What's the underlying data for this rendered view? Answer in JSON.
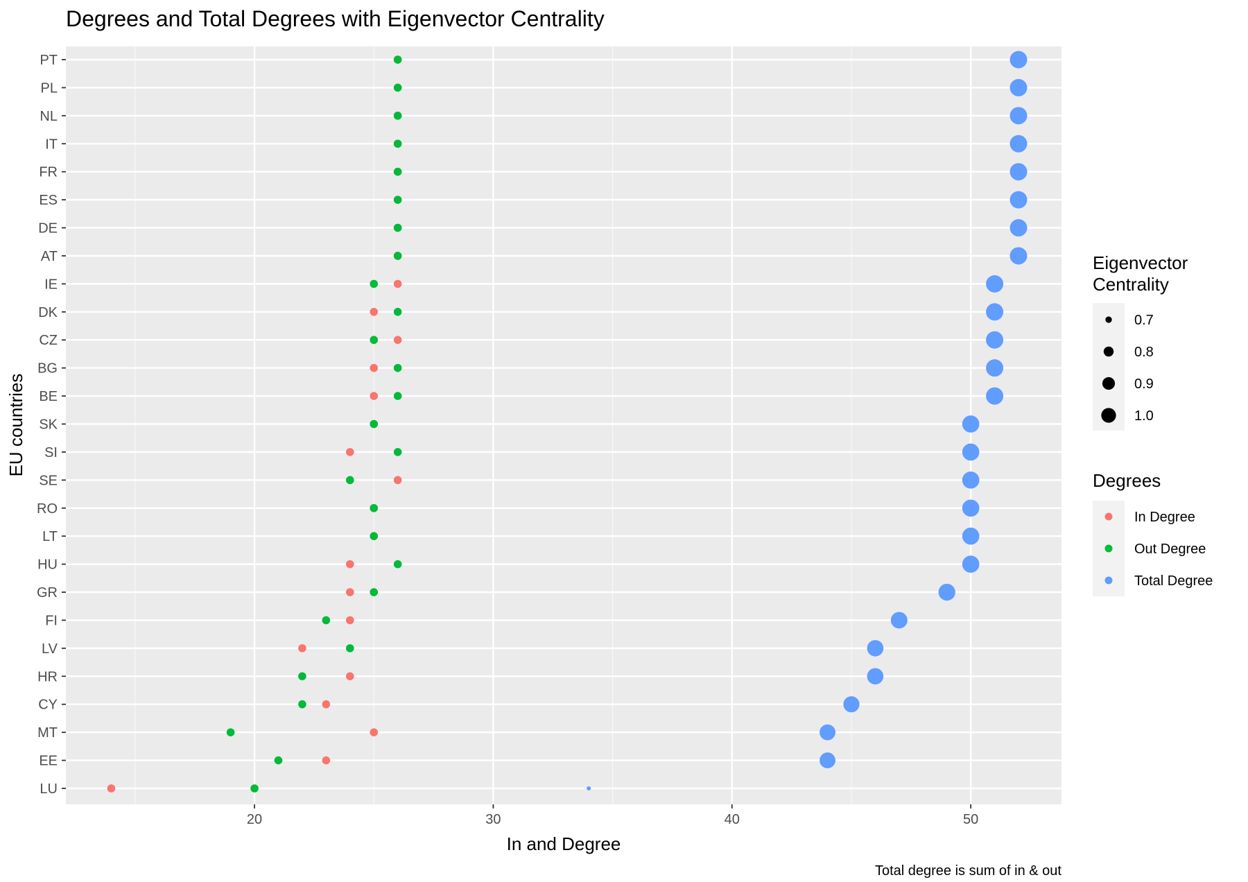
{
  "chart_data": {
    "type": "scatter",
    "title": "Degrees and Total Degrees with Eigenvector Centrality",
    "xlabel": "In and Degree",
    "ylabel": "EU countries",
    "caption": "Total degree is sum of in & out",
    "xlim": [
      12.1,
      53.8
    ],
    "x_ticks": [
      20,
      30,
      40,
      50
    ],
    "grid": true,
    "background": "#ebebeb",
    "categories": [
      "LU",
      "EE",
      "MT",
      "CY",
      "HR",
      "LV",
      "FI",
      "GR",
      "HU",
      "LT",
      "RO",
      "SE",
      "SI",
      "SK",
      "BE",
      "BG",
      "CZ",
      "DK",
      "IE",
      "AT",
      "DE",
      "ES",
      "FR",
      "IT",
      "NL",
      "PL",
      "PT"
    ],
    "series": [
      {
        "name": "In Degree",
        "color": "#F8766D",
        "values": [
          14,
          23,
          25,
          23,
          24,
          22,
          24,
          24,
          24,
          25,
          25,
          26,
          24,
          25,
          25,
          25,
          26,
          25,
          26,
          26,
          26,
          26,
          26,
          26,
          26,
          26,
          26
        ]
      },
      {
        "name": "Out Degree",
        "color": "#00BA38",
        "values": [
          20,
          21,
          19,
          22,
          22,
          24,
          23,
          25,
          26,
          25,
          25,
          24,
          26,
          25,
          26,
          26,
          25,
          26,
          25,
          26,
          26,
          26,
          26,
          26,
          26,
          26,
          26
        ]
      },
      {
        "name": "Total Degree",
        "color": "#619CFF",
        "values": [
          34,
          44,
          44,
          45,
          46,
          46,
          47,
          49,
          50,
          50,
          50,
          50,
          50,
          50,
          51,
          51,
          51,
          51,
          51,
          52,
          52,
          52,
          52,
          52,
          52,
          52,
          52
        ],
        "centrality": [
          0.65,
          0.94,
          0.94,
          0.95,
          0.96,
          0.96,
          0.97,
          0.98,
          0.99,
          0.99,
          0.99,
          0.99,
          0.99,
          0.99,
          1.0,
          1.0,
          1.0,
          1.0,
          1.0,
          1.0,
          1.0,
          1.0,
          1.0,
          1.0,
          1.0,
          1.0,
          1.0
        ]
      }
    ],
    "legend": {
      "placement": "right",
      "size_title": "Eigenvector\nCentrality",
      "size_title_lines": [
        "Eigenvector",
        "Centrality"
      ],
      "size_breaks": [
        0.7,
        0.8,
        0.9,
        1.0
      ],
      "size_labels": [
        "0.7",
        "0.8",
        "0.9",
        "1.0"
      ],
      "color_title": "Degrees",
      "color_labels": [
        "In Degree",
        "Out Degree",
        "Total Degree"
      ]
    }
  }
}
